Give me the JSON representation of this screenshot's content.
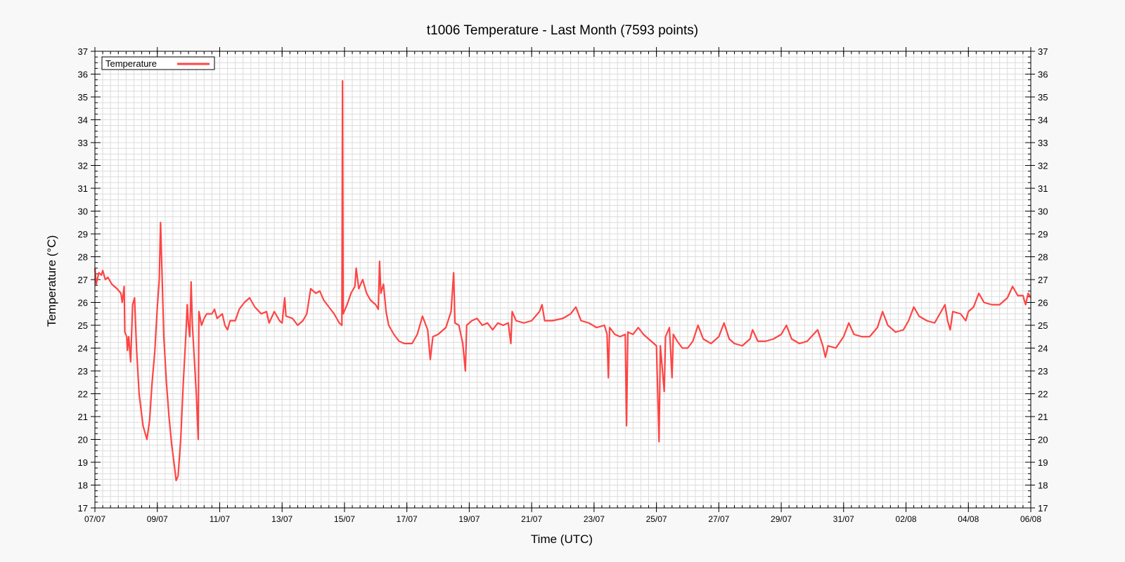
{
  "chart_data": {
    "type": "line",
    "title": "t1006 Temperature - Last Month (7593 points)",
    "xlabel": "Time (UTC)",
    "ylabel": "Temperature (°C)",
    "x_type": "date",
    "xlim": [
      "2024-07-07T00:00",
      "2024-08-06T00:00"
    ],
    "ylim": [
      17,
      37
    ],
    "y_ticks": [
      17,
      18,
      19,
      20,
      21,
      22,
      23,
      24,
      25,
      26,
      27,
      28,
      29,
      30,
      31,
      32,
      33,
      34,
      35,
      36,
      37
    ],
    "x_tick_labels": [
      {
        "date": "2024-07-07T00:00",
        "label": "07/07"
      },
      {
        "date": "2024-07-09T00:00",
        "label": "09/07"
      },
      {
        "date": "2024-07-11T00:00",
        "label": "11/07"
      },
      {
        "date": "2024-07-13T00:00",
        "label": "13/07"
      },
      {
        "date": "2024-07-15T00:00",
        "label": "15/07"
      },
      {
        "date": "2024-07-17T00:00",
        "label": "17/07"
      },
      {
        "date": "2024-07-19T00:00",
        "label": "19/07"
      },
      {
        "date": "2024-07-21T00:00",
        "label": "21/07"
      },
      {
        "date": "2024-07-23T00:00",
        "label": "23/07"
      },
      {
        "date": "2024-07-25T00:00",
        "label": "25/07"
      },
      {
        "date": "2024-07-27T00:00",
        "label": "27/07"
      },
      {
        "date": "2024-07-29T00:00",
        "label": "29/07"
      },
      {
        "date": "2024-07-31T00:00",
        "label": "31/07"
      },
      {
        "date": "2024-08-02T00:00",
        "label": "02/08"
      },
      {
        "date": "2024-08-04T00:00",
        "label": "04/08"
      },
      {
        "date": "2024-08-06T00:00",
        "label": "06/08"
      }
    ],
    "grid": true,
    "right_axis_mirror": true,
    "legend": {
      "position": "top-left",
      "entries": [
        "Temperature"
      ]
    },
    "series": [
      {
        "name": "Temperature",
        "color": "#ff4444",
        "points": [
          [
            "2024-07-07T00:00",
            27.5
          ],
          [
            "2024-07-07T01:00",
            26.8
          ],
          [
            "2024-07-07T03:00",
            27.3
          ],
          [
            "2024-07-07T05:00",
            27.2
          ],
          [
            "2024-07-07T06:00",
            27.4
          ],
          [
            "2024-07-07T08:00",
            27.0
          ],
          [
            "2024-07-07T10:00",
            27.1
          ],
          [
            "2024-07-07T13:00",
            26.8
          ],
          [
            "2024-07-07T17:00",
            26.6
          ],
          [
            "2024-07-07T20:00",
            26.4
          ],
          [
            "2024-07-07T21:00",
            26.0
          ],
          [
            "2024-07-07T22:30",
            26.7
          ],
          [
            "2024-07-07T23:00",
            24.7
          ],
          [
            "2024-07-08T00:30",
            24.5
          ],
          [
            "2024-07-08T01:00",
            23.9
          ],
          [
            "2024-07-08T02:00",
            24.5
          ],
          [
            "2024-07-08T03:30",
            23.4
          ],
          [
            "2024-07-08T05:00",
            25.9
          ],
          [
            "2024-07-08T06:30",
            26.2
          ],
          [
            "2024-07-08T08:00",
            24.0
          ],
          [
            "2024-07-08T10:00",
            22.0
          ],
          [
            "2024-07-08T13:00",
            20.6
          ],
          [
            "2024-07-08T16:00",
            20.0
          ],
          [
            "2024-07-08T18:00",
            20.8
          ],
          [
            "2024-07-08T20:00",
            22.5
          ],
          [
            "2024-07-08T22:00",
            23.8
          ],
          [
            "2024-07-09T00:00",
            25.8
          ],
          [
            "2024-07-09T01:30",
            27.0
          ],
          [
            "2024-07-09T02:30",
            29.5
          ],
          [
            "2024-07-09T03:30",
            27.5
          ],
          [
            "2024-07-09T05:00",
            24.5
          ],
          [
            "2024-07-09T07:00",
            22.5
          ],
          [
            "2024-07-09T09:00",
            21.0
          ],
          [
            "2024-07-09T11:00",
            19.8
          ],
          [
            "2024-07-09T13:00",
            18.9
          ],
          [
            "2024-07-09T14:30",
            18.2
          ],
          [
            "2024-07-09T16:00",
            18.4
          ],
          [
            "2024-07-09T18:00",
            20.0
          ],
          [
            "2024-07-09T20:00",
            22.5
          ],
          [
            "2024-07-09T22:00",
            24.6
          ],
          [
            "2024-07-09T23:00",
            25.9
          ],
          [
            "2024-07-10T00:00",
            25.0
          ],
          [
            "2024-07-10T01:00",
            24.5
          ],
          [
            "2024-07-10T02:00",
            26.9
          ],
          [
            "2024-07-10T03:00",
            25.0
          ],
          [
            "2024-07-10T04:00",
            24.0
          ],
          [
            "2024-07-10T06:00",
            22.0
          ],
          [
            "2024-07-10T07:30",
            20.0
          ],
          [
            "2024-07-10T08:00",
            25.6
          ],
          [
            "2024-07-10T10:00",
            25.0
          ],
          [
            "2024-07-10T12:00",
            25.3
          ],
          [
            "2024-07-10T14:00",
            25.5
          ],
          [
            "2024-07-10T18:00",
            25.5
          ],
          [
            "2024-07-10T20:00",
            25.7
          ],
          [
            "2024-07-10T22:00",
            25.3
          ],
          [
            "2024-07-11T02:00",
            25.5
          ],
          [
            "2024-07-11T04:00",
            25.0
          ],
          [
            "2024-07-11T06:00",
            24.8
          ],
          [
            "2024-07-11T08:00",
            25.2
          ],
          [
            "2024-07-11T12:00",
            25.2
          ],
          [
            "2024-07-11T15:00",
            25.7
          ],
          [
            "2024-07-11T19:00",
            26.0
          ],
          [
            "2024-07-11T23:00",
            26.2
          ],
          [
            "2024-07-12T03:00",
            25.8
          ],
          [
            "2024-07-12T08:00",
            25.5
          ],
          [
            "2024-07-12T12:00",
            25.6
          ],
          [
            "2024-07-12T14:00",
            25.1
          ],
          [
            "2024-07-12T18:00",
            25.6
          ],
          [
            "2024-07-12T22:00",
            25.2
          ],
          [
            "2024-07-13T00:00",
            25.1
          ],
          [
            "2024-07-13T02:00",
            26.2
          ],
          [
            "2024-07-13T03:00",
            25.4
          ],
          [
            "2024-07-13T08:00",
            25.3
          ],
          [
            "2024-07-13T12:00",
            25.0
          ],
          [
            "2024-07-13T16:00",
            25.2
          ],
          [
            "2024-07-13T19:00",
            25.5
          ],
          [
            "2024-07-13T22:00",
            26.6
          ],
          [
            "2024-07-14T02:00",
            26.4
          ],
          [
            "2024-07-14T05:00",
            26.5
          ],
          [
            "2024-07-14T08:00",
            26.1
          ],
          [
            "2024-07-14T12:00",
            25.8
          ],
          [
            "2024-07-14T16:00",
            25.5
          ],
          [
            "2024-07-14T20:00",
            25.1
          ],
          [
            "2024-07-14T22:00",
            25.0
          ],
          [
            "2024-07-14T22:30",
            35.7
          ],
          [
            "2024-07-14T23:00",
            25.5
          ],
          [
            "2024-07-15T02:00",
            25.9
          ],
          [
            "2024-07-15T05:00",
            26.4
          ],
          [
            "2024-07-15T08:00",
            26.7
          ],
          [
            "2024-07-15T09:00",
            27.5
          ],
          [
            "2024-07-15T11:00",
            26.6
          ],
          [
            "2024-07-15T14:00",
            27.0
          ],
          [
            "2024-07-15T17:00",
            26.4
          ],
          [
            "2024-07-15T20:00",
            26.1
          ],
          [
            "2024-07-16T00:00",
            25.9
          ],
          [
            "2024-07-16T02:00",
            25.7
          ],
          [
            "2024-07-16T03:00",
            27.8
          ],
          [
            "2024-07-16T04:00",
            26.4
          ],
          [
            "2024-07-16T06:00",
            26.8
          ],
          [
            "2024-07-16T08:00",
            25.6
          ],
          [
            "2024-07-16T10:00",
            25.0
          ],
          [
            "2024-07-16T14:00",
            24.6
          ],
          [
            "2024-07-16T18:00",
            24.3
          ],
          [
            "2024-07-16T22:00",
            24.2
          ],
          [
            "2024-07-17T04:00",
            24.2
          ],
          [
            "2024-07-17T08:00",
            24.6
          ],
          [
            "2024-07-17T12:00",
            25.4
          ],
          [
            "2024-07-17T16:00",
            24.8
          ],
          [
            "2024-07-17T18:00",
            23.5
          ],
          [
            "2024-07-17T20:00",
            24.5
          ],
          [
            "2024-07-18T00:00",
            24.6
          ],
          [
            "2024-07-18T06:00",
            24.9
          ],
          [
            "2024-07-18T10:00",
            25.6
          ],
          [
            "2024-07-18T12:00",
            27.3
          ],
          [
            "2024-07-18T13:00",
            25.1
          ],
          [
            "2024-07-18T16:00",
            25.0
          ],
          [
            "2024-07-18T19:00",
            24.2
          ],
          [
            "2024-07-18T21:00",
            23.0
          ],
          [
            "2024-07-18T22:00",
            25.0
          ],
          [
            "2024-07-19T02:00",
            25.2
          ],
          [
            "2024-07-19T06:00",
            25.3
          ],
          [
            "2024-07-19T10:00",
            25.0
          ],
          [
            "2024-07-19T14:00",
            25.1
          ],
          [
            "2024-07-19T18:00",
            24.8
          ],
          [
            "2024-07-19T22:00",
            25.1
          ],
          [
            "2024-07-20T02:00",
            25.0
          ],
          [
            "2024-07-20T06:00",
            25.1
          ],
          [
            "2024-07-20T08:00",
            24.2
          ],
          [
            "2024-07-20T09:00",
            25.6
          ],
          [
            "2024-07-20T12:00",
            25.2
          ],
          [
            "2024-07-20T18:00",
            25.1
          ],
          [
            "2024-07-21T00:00",
            25.2
          ],
          [
            "2024-07-21T06:00",
            25.6
          ],
          [
            "2024-07-21T08:00",
            25.9
          ],
          [
            "2024-07-21T10:00",
            25.2
          ],
          [
            "2024-07-21T16:00",
            25.2
          ],
          [
            "2024-07-22T00:00",
            25.3
          ],
          [
            "2024-07-22T06:00",
            25.5
          ],
          [
            "2024-07-22T10:00",
            25.8
          ],
          [
            "2024-07-22T14:00",
            25.2
          ],
          [
            "2024-07-22T20:00",
            25.1
          ],
          [
            "2024-07-23T02:00",
            24.9
          ],
          [
            "2024-07-23T08:00",
            25.0
          ],
          [
            "2024-07-23T10:00",
            24.6
          ],
          [
            "2024-07-23T11:00",
            22.7
          ],
          [
            "2024-07-23T12:00",
            24.9
          ],
          [
            "2024-07-23T16:00",
            24.6
          ],
          [
            "2024-07-23T20:00",
            24.5
          ],
          [
            "2024-07-24T00:00",
            24.6
          ],
          [
            "2024-07-24T01:00",
            20.6
          ],
          [
            "2024-07-24T02:00",
            24.7
          ],
          [
            "2024-07-24T06:00",
            24.6
          ],
          [
            "2024-07-24T10:00",
            24.9
          ],
          [
            "2024-07-24T14:00",
            24.6
          ],
          [
            "2024-07-24T20:00",
            24.3
          ],
          [
            "2024-07-25T00:00",
            24.1
          ],
          [
            "2024-07-25T02:00",
            19.9
          ],
          [
            "2024-07-25T03:00",
            24.1
          ],
          [
            "2024-07-25T06:00",
            22.1
          ],
          [
            "2024-07-25T07:00",
            24.5
          ],
          [
            "2024-07-25T10:00",
            24.9
          ],
          [
            "2024-07-25T12:00",
            22.7
          ],
          [
            "2024-07-25T13:00",
            24.6
          ],
          [
            "2024-07-25T16:00",
            24.3
          ],
          [
            "2024-07-25T20:00",
            24.0
          ],
          [
            "2024-07-26T00:00",
            24.0
          ],
          [
            "2024-07-26T04:00",
            24.3
          ],
          [
            "2024-07-26T08:00",
            25.0
          ],
          [
            "2024-07-26T12:00",
            24.4
          ],
          [
            "2024-07-26T18:00",
            24.2
          ],
          [
            "2024-07-27T00:00",
            24.5
          ],
          [
            "2024-07-27T04:00",
            25.1
          ],
          [
            "2024-07-27T08:00",
            24.4
          ],
          [
            "2024-07-27T12:00",
            24.2
          ],
          [
            "2024-07-27T18:00",
            24.1
          ],
          [
            "2024-07-28T00:00",
            24.4
          ],
          [
            "2024-07-28T02:00",
            24.8
          ],
          [
            "2024-07-28T06:00",
            24.3
          ],
          [
            "2024-07-28T12:00",
            24.3
          ],
          [
            "2024-07-28T18:00",
            24.4
          ],
          [
            "2024-07-29T00:00",
            24.6
          ],
          [
            "2024-07-29T04:00",
            25.0
          ],
          [
            "2024-07-29T08:00",
            24.4
          ],
          [
            "2024-07-29T14:00",
            24.2
          ],
          [
            "2024-07-29T20:00",
            24.3
          ],
          [
            "2024-07-30T04:00",
            24.8
          ],
          [
            "2024-07-30T08:00",
            24.1
          ],
          [
            "2024-07-30T10:00",
            23.6
          ],
          [
            "2024-07-30T12:00",
            24.1
          ],
          [
            "2024-07-30T18:00",
            24.0
          ],
          [
            "2024-07-31T00:00",
            24.5
          ],
          [
            "2024-07-31T04:00",
            25.1
          ],
          [
            "2024-07-31T08:00",
            24.6
          ],
          [
            "2024-07-31T14:00",
            24.5
          ],
          [
            "2024-07-31T20:00",
            24.5
          ],
          [
            "2024-08-01T02:00",
            24.9
          ],
          [
            "2024-08-01T06:00",
            25.6
          ],
          [
            "2024-08-01T10:00",
            25.0
          ],
          [
            "2024-08-01T16:00",
            24.7
          ],
          [
            "2024-08-01T22:00",
            24.8
          ],
          [
            "2024-08-02T02:00",
            25.2
          ],
          [
            "2024-08-02T06:00",
            25.8
          ],
          [
            "2024-08-02T10:00",
            25.4
          ],
          [
            "2024-08-02T16:00",
            25.2
          ],
          [
            "2024-08-02T22:00",
            25.1
          ],
          [
            "2024-08-03T02:00",
            25.5
          ],
          [
            "2024-08-03T06:00",
            25.9
          ],
          [
            "2024-08-03T08:00",
            25.2
          ],
          [
            "2024-08-03T10:00",
            24.8
          ],
          [
            "2024-08-03T12:00",
            25.6
          ],
          [
            "2024-08-03T18:00",
            25.5
          ],
          [
            "2024-08-03T22:00",
            25.2
          ],
          [
            "2024-08-04T00:00",
            25.6
          ],
          [
            "2024-08-04T04:00",
            25.8
          ],
          [
            "2024-08-04T08:00",
            26.4
          ],
          [
            "2024-08-04T12:00",
            26.0
          ],
          [
            "2024-08-04T18:00",
            25.9
          ],
          [
            "2024-08-05T00:00",
            25.9
          ],
          [
            "2024-08-05T06:00",
            26.2
          ],
          [
            "2024-08-05T10:00",
            26.7
          ],
          [
            "2024-08-05T14:00",
            26.3
          ],
          [
            "2024-08-05T18:00",
            26.3
          ],
          [
            "2024-08-05T20:00",
            25.9
          ],
          [
            "2024-08-05T22:00",
            26.4
          ],
          [
            "2024-08-06T00:00",
            26.2
          ]
        ]
      }
    ]
  }
}
